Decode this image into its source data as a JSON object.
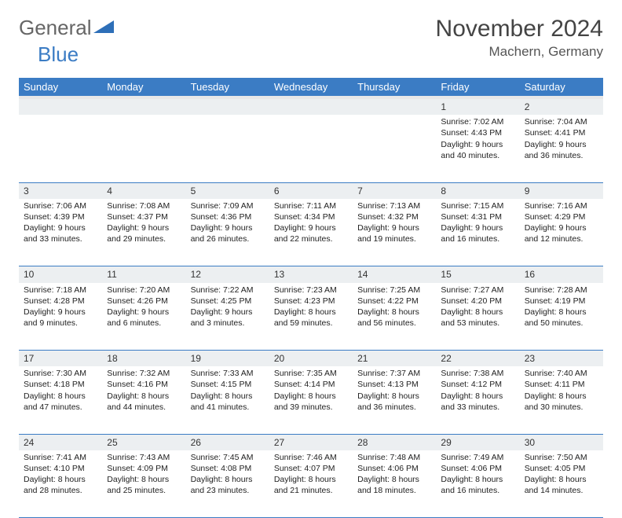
{
  "logo": {
    "text1": "General",
    "text2": "Blue",
    "shape_color": "#2e6fb8"
  },
  "title": "November 2024",
  "location": "Machern, Germany",
  "colors": {
    "header_bg": "#3b7cc4",
    "header_text": "#ffffff",
    "row_divider": "#3b7cc4",
    "daynum_bg": "#eceff1",
    "text": "#222222",
    "logo_general": "#666666",
    "logo_blue": "#3b7cc4"
  },
  "weekdays": [
    "Sunday",
    "Monday",
    "Tuesday",
    "Wednesday",
    "Thursday",
    "Friday",
    "Saturday"
  ],
  "weeks": [
    [
      null,
      null,
      null,
      null,
      null,
      {
        "n": "1",
        "sunrise": "7:02 AM",
        "sunset": "4:43 PM",
        "d1": "Daylight: 9 hours",
        "d2": "and 40 minutes."
      },
      {
        "n": "2",
        "sunrise": "7:04 AM",
        "sunset": "4:41 PM",
        "d1": "Daylight: 9 hours",
        "d2": "and 36 minutes."
      }
    ],
    [
      {
        "n": "3",
        "sunrise": "7:06 AM",
        "sunset": "4:39 PM",
        "d1": "Daylight: 9 hours",
        "d2": "and 33 minutes."
      },
      {
        "n": "4",
        "sunrise": "7:08 AM",
        "sunset": "4:37 PM",
        "d1": "Daylight: 9 hours",
        "d2": "and 29 minutes."
      },
      {
        "n": "5",
        "sunrise": "7:09 AM",
        "sunset": "4:36 PM",
        "d1": "Daylight: 9 hours",
        "d2": "and 26 minutes."
      },
      {
        "n": "6",
        "sunrise": "7:11 AM",
        "sunset": "4:34 PM",
        "d1": "Daylight: 9 hours",
        "d2": "and 22 minutes."
      },
      {
        "n": "7",
        "sunrise": "7:13 AM",
        "sunset": "4:32 PM",
        "d1": "Daylight: 9 hours",
        "d2": "and 19 minutes."
      },
      {
        "n": "8",
        "sunrise": "7:15 AM",
        "sunset": "4:31 PM",
        "d1": "Daylight: 9 hours",
        "d2": "and 16 minutes."
      },
      {
        "n": "9",
        "sunrise": "7:16 AM",
        "sunset": "4:29 PM",
        "d1": "Daylight: 9 hours",
        "d2": "and 12 minutes."
      }
    ],
    [
      {
        "n": "10",
        "sunrise": "7:18 AM",
        "sunset": "4:28 PM",
        "d1": "Daylight: 9 hours",
        "d2": "and 9 minutes."
      },
      {
        "n": "11",
        "sunrise": "7:20 AM",
        "sunset": "4:26 PM",
        "d1": "Daylight: 9 hours",
        "d2": "and 6 minutes."
      },
      {
        "n": "12",
        "sunrise": "7:22 AM",
        "sunset": "4:25 PM",
        "d1": "Daylight: 9 hours",
        "d2": "and 3 minutes."
      },
      {
        "n": "13",
        "sunrise": "7:23 AM",
        "sunset": "4:23 PM",
        "d1": "Daylight: 8 hours",
        "d2": "and 59 minutes."
      },
      {
        "n": "14",
        "sunrise": "7:25 AM",
        "sunset": "4:22 PM",
        "d1": "Daylight: 8 hours",
        "d2": "and 56 minutes."
      },
      {
        "n": "15",
        "sunrise": "7:27 AM",
        "sunset": "4:20 PM",
        "d1": "Daylight: 8 hours",
        "d2": "and 53 minutes."
      },
      {
        "n": "16",
        "sunrise": "7:28 AM",
        "sunset": "4:19 PM",
        "d1": "Daylight: 8 hours",
        "d2": "and 50 minutes."
      }
    ],
    [
      {
        "n": "17",
        "sunrise": "7:30 AM",
        "sunset": "4:18 PM",
        "d1": "Daylight: 8 hours",
        "d2": "and 47 minutes."
      },
      {
        "n": "18",
        "sunrise": "7:32 AM",
        "sunset": "4:16 PM",
        "d1": "Daylight: 8 hours",
        "d2": "and 44 minutes."
      },
      {
        "n": "19",
        "sunrise": "7:33 AM",
        "sunset": "4:15 PM",
        "d1": "Daylight: 8 hours",
        "d2": "and 41 minutes."
      },
      {
        "n": "20",
        "sunrise": "7:35 AM",
        "sunset": "4:14 PM",
        "d1": "Daylight: 8 hours",
        "d2": "and 39 minutes."
      },
      {
        "n": "21",
        "sunrise": "7:37 AM",
        "sunset": "4:13 PM",
        "d1": "Daylight: 8 hours",
        "d2": "and 36 minutes."
      },
      {
        "n": "22",
        "sunrise": "7:38 AM",
        "sunset": "4:12 PM",
        "d1": "Daylight: 8 hours",
        "d2": "and 33 minutes."
      },
      {
        "n": "23",
        "sunrise": "7:40 AM",
        "sunset": "4:11 PM",
        "d1": "Daylight: 8 hours",
        "d2": "and 30 minutes."
      }
    ],
    [
      {
        "n": "24",
        "sunrise": "7:41 AM",
        "sunset": "4:10 PM",
        "d1": "Daylight: 8 hours",
        "d2": "and 28 minutes."
      },
      {
        "n": "25",
        "sunrise": "7:43 AM",
        "sunset": "4:09 PM",
        "d1": "Daylight: 8 hours",
        "d2": "and 25 minutes."
      },
      {
        "n": "26",
        "sunrise": "7:45 AM",
        "sunset": "4:08 PM",
        "d1": "Daylight: 8 hours",
        "d2": "and 23 minutes."
      },
      {
        "n": "27",
        "sunrise": "7:46 AM",
        "sunset": "4:07 PM",
        "d1": "Daylight: 8 hours",
        "d2": "and 21 minutes."
      },
      {
        "n": "28",
        "sunrise": "7:48 AM",
        "sunset": "4:06 PM",
        "d1": "Daylight: 8 hours",
        "d2": "and 18 minutes."
      },
      {
        "n": "29",
        "sunrise": "7:49 AM",
        "sunset": "4:06 PM",
        "d1": "Daylight: 8 hours",
        "d2": "and 16 minutes."
      },
      {
        "n": "30",
        "sunrise": "7:50 AM",
        "sunset": "4:05 PM",
        "d1": "Daylight: 8 hours",
        "d2": "and 14 minutes."
      }
    ]
  ],
  "labels": {
    "sunrise": "Sunrise: ",
    "sunset": "Sunset: "
  }
}
